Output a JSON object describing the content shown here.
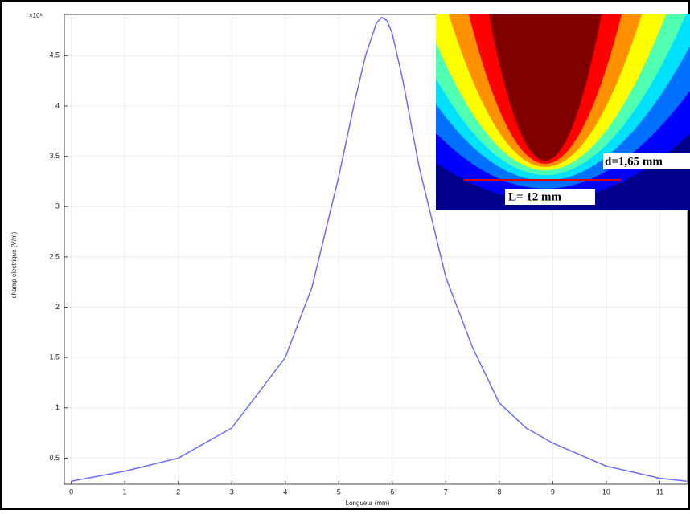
{
  "chart_data": {
    "type": "line",
    "x_label": "Longueur (mm)",
    "y_label": "champ électrique (V/m)",
    "y_multiplier": "×10⁶",
    "x": [
      0,
      1,
      2,
      3,
      4,
      4.5,
      5,
      5.3,
      5.5,
      5.7,
      5.8,
      5.9,
      6,
      6.2,
      6.5,
      7,
      7.5,
      8,
      8.5,
      9,
      10,
      11,
      11.5
    ],
    "values": [
      0.27,
      0.37,
      0.5,
      0.8,
      1.5,
      2.2,
      3.3,
      4.05,
      4.5,
      4.82,
      4.88,
      4.85,
      4.72,
      4.25,
      3.4,
      2.3,
      1.6,
      1.05,
      0.8,
      0.65,
      0.42,
      0.3,
      0.27
    ],
    "color": "#6b6bff",
    "xlim": [
      -0.13,
      11.52
    ],
    "ylim": [
      0.24,
      4.91
    ],
    "xticks": [
      0,
      1,
      2,
      3,
      4,
      5,
      6,
      7,
      8,
      9,
      10,
      11
    ],
    "yticks": [
      0.5,
      1,
      1.5,
      2,
      2.5,
      3,
      3.5,
      4,
      4.5
    ],
    "grid": true,
    "annotations": [
      "d=1,65 mm",
      "L= 12 mm"
    ]
  }
}
